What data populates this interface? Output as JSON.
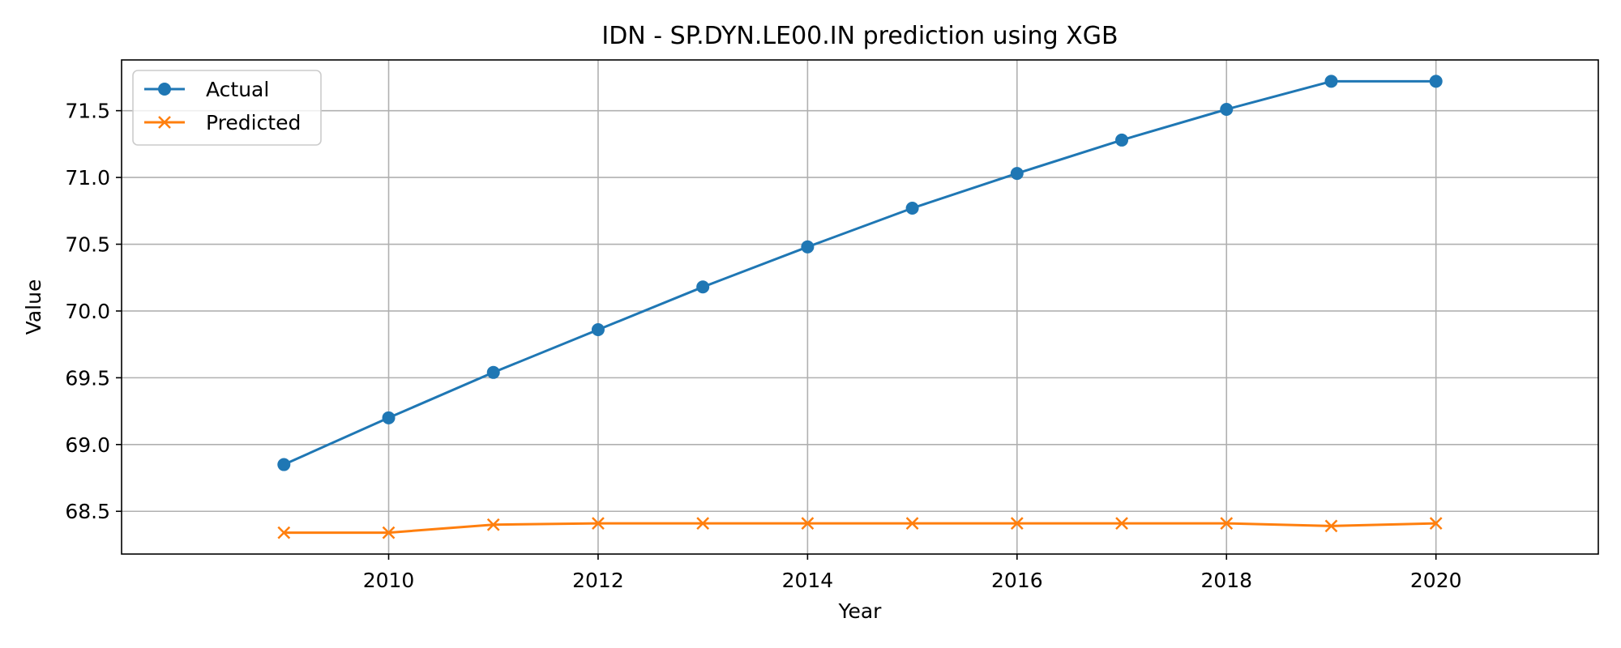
{
  "chart_data": {
    "type": "line",
    "title": "IDN - SP.DYN.LE00.IN prediction using XGB",
    "xlabel": "Year",
    "ylabel": "Value",
    "x": [
      2009,
      2010,
      2011,
      2012,
      2013,
      2014,
      2015,
      2016,
      2017,
      2018,
      2019,
      2020
    ],
    "xlim": [
      2007.45,
      2021.55
    ],
    "ylim": [
      68.18,
      71.88
    ],
    "xticks": [
      "2010",
      "2012",
      "2014",
      "2016",
      "2018",
      "2020"
    ],
    "yticks": [
      "68.5",
      "69.0",
      "69.5",
      "70.0",
      "70.5",
      "71.0",
      "71.5"
    ],
    "grid": true,
    "legend_position": "top-left",
    "series": [
      {
        "name": "Actual",
        "color": "#1f77b4",
        "marker": "circle",
        "values": [
          68.85,
          69.2,
          69.54,
          69.86,
          70.18,
          70.48,
          70.77,
          71.03,
          71.28,
          71.51,
          71.72,
          71.72
        ]
      },
      {
        "name": "Predicted",
        "color": "#ff7f0e",
        "marker": "x",
        "values": [
          68.34,
          68.34,
          68.4,
          68.41,
          68.41,
          68.41,
          68.41,
          68.41,
          68.41,
          68.41,
          68.39,
          68.41
        ]
      }
    ]
  }
}
